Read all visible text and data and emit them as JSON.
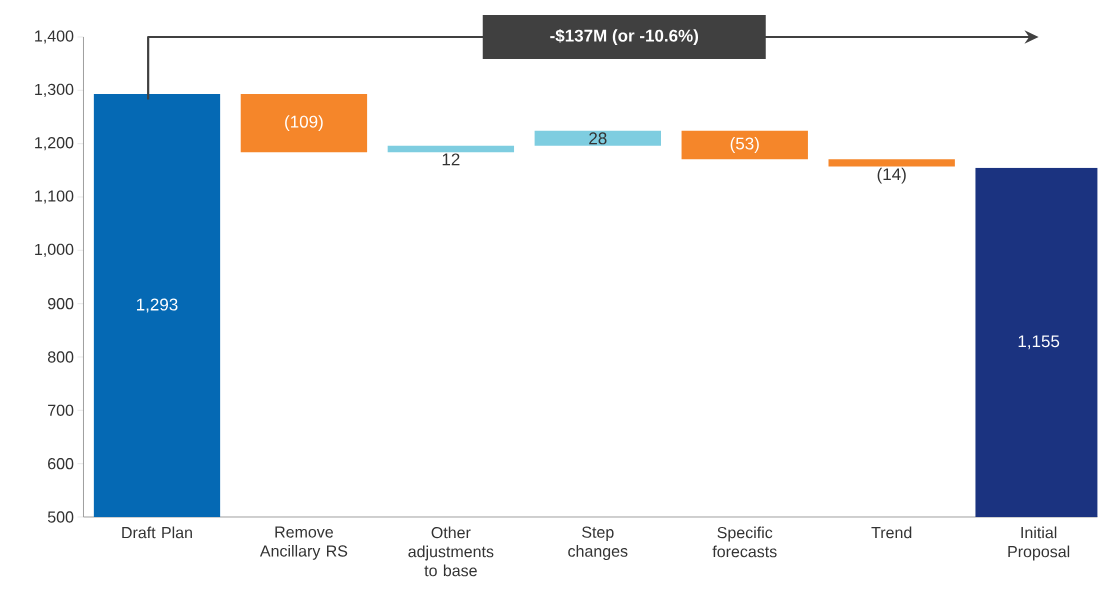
{
  "chart_data": {
    "type": "bar",
    "categories": [
      "Draft Plan",
      "Remove Ancillary RS",
      "Other adjustments to base",
      "Step changes",
      "Specific forecasts",
      "Trend",
      "Initial Proposal"
    ],
    "base": [
      0,
      1293,
      1184,
      1196,
      1224,
      1171,
      0
    ],
    "values": [
      1293,
      -109,
      12,
      28,
      -53,
      -14,
      1155
    ],
    "colors": [
      "#0569b4",
      "#f5862a",
      "#7ecde0",
      "#7ecde0",
      "#f5862a",
      "#f5862a",
      "#1b3380"
    ],
    "value_labels": [
      "1,293",
      "(109)",
      "12",
      "28",
      "(53)",
      "(14)",
      "1,155"
    ],
    "ylim": [
      500,
      1400
    ],
    "yticks": [
      {
        "value": 500,
        "label": "500"
      },
      {
        "value": 600,
        "label": "600"
      },
      {
        "value": 700,
        "label": "700"
      },
      {
        "value": 800,
        "label": "800"
      },
      {
        "value": 900,
        "label": "900"
      },
      {
        "value": 1000,
        "label": "1,000"
      },
      {
        "value": 1100,
        "label": "1,100"
      },
      {
        "value": 1200,
        "label": "1,200"
      },
      {
        "value": 1300,
        "label": "1,300"
      },
      {
        "value": 1400,
        "label": "1,400"
      }
    ],
    "annotations": [
      "-$137M (or -10.6%)"
    ]
  }
}
